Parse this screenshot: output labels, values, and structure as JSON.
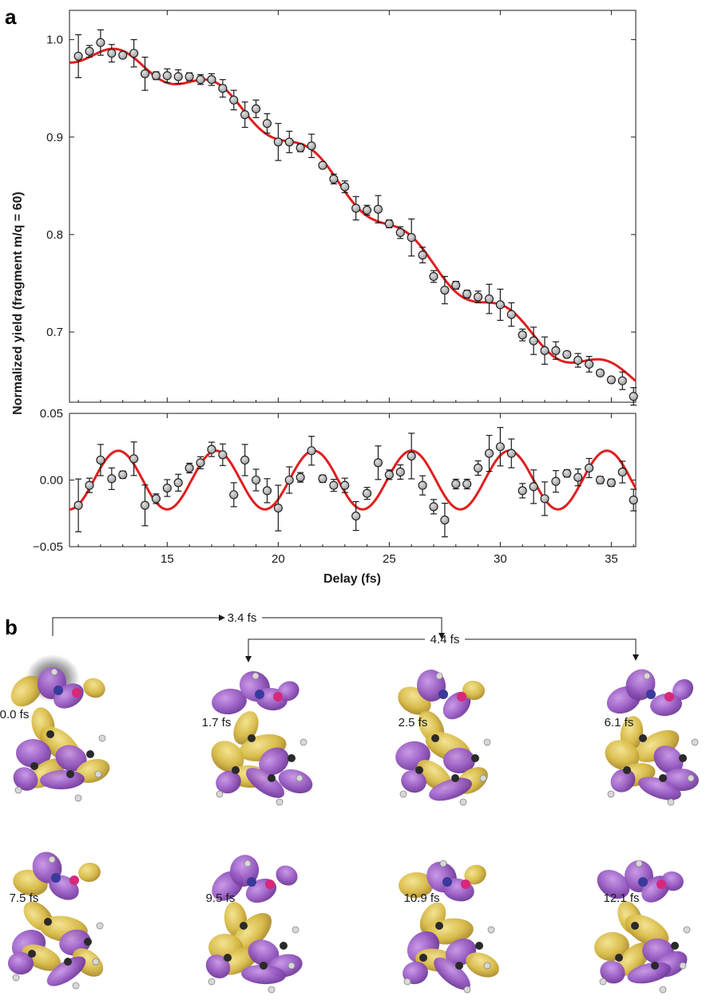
{
  "panel_a_label": "a",
  "panel_b_label": "b",
  "chart_data": [
    {
      "type": "scatter",
      "title": "",
      "xlabel": "Delay (fs)",
      "ylabel": "Normalized yield (fragment m/q = 60)",
      "xlim": [
        10.6,
        36.1
      ],
      "ylim": [
        0.628,
        1.03
      ],
      "xticks": [
        15,
        20,
        25,
        30,
        35
      ],
      "yticks": [
        0.7,
        0.8,
        0.9,
        1.0
      ],
      "ytick_labels": [
        "0.7",
        "0.8",
        "0.9",
        "1.0"
      ],
      "grid": false,
      "series": [
        {
          "kind": "points_with_errorbars",
          "color": "#a8a8a8",
          "x": [
            11.0,
            11.5,
            12.0,
            12.5,
            13.0,
            13.5,
            14.0,
            14.5,
            15.0,
            15.5,
            16.0,
            16.5,
            17.0,
            17.5,
            18.0,
            18.5,
            19.0,
            19.5,
            20.0,
            20.5,
            21.0,
            21.5,
            22.0,
            22.5,
            23.0,
            23.5,
            24.0,
            24.5,
            25.0,
            25.5,
            26.0,
            26.5,
            27.0,
            27.5,
            28.0,
            28.5,
            29.0,
            29.5,
            30.0,
            30.5,
            31.0,
            31.5,
            32.0,
            32.5,
            33.0,
            33.5,
            34.0,
            34.5,
            35.0,
            35.5,
            36.0
          ],
          "y": [
            0.983,
            0.988,
            0.997,
            0.986,
            0.984,
            0.986,
            0.965,
            0.963,
            0.963,
            0.962,
            0.962,
            0.959,
            0.959,
            0.95,
            0.938,
            0.923,
            0.929,
            0.914,
            0.895,
            0.895,
            0.889,
            0.891,
            0.871,
            0.857,
            0.849,
            0.827,
            0.825,
            0.826,
            0.811,
            0.802,
            0.797,
            0.779,
            0.757,
            0.743,
            0.748,
            0.739,
            0.736,
            0.734,
            0.728,
            0.718,
            0.697,
            0.691,
            0.681,
            0.681,
            0.677,
            0.671,
            0.667,
            0.658,
            0.651,
            0.65,
            0.634
          ],
          "yerr": [
            0.022,
            0.006,
            0.013,
            0.009,
            0.003,
            0.014,
            0.017,
            0.004,
            0.007,
            0.007,
            0.004,
            0.005,
            0.006,
            0.009,
            0.01,
            0.013,
            0.009,
            0.01,
            0.019,
            0.011,
            0.004,
            0.012,
            0.003,
            0.005,
            0.006,
            0.012,
            0.005,
            0.014,
            0.004,
            0.006,
            0.019,
            0.008,
            0.006,
            0.014,
            0.004,
            0.004,
            0.006,
            0.015,
            0.016,
            0.012,
            0.006,
            0.014,
            0.014,
            0.009,
            0.003,
            0.007,
            0.008,
            0.003,
            0.003,
            0.009,
            0.009
          ]
        },
        {
          "kind": "fit_curve",
          "color": "#e01e1e",
          "description_free_params": true
        }
      ]
    },
    {
      "type": "scatter",
      "title": "",
      "xlabel": "Delay (fs)",
      "ylabel": "",
      "xlim": [
        10.6,
        36.1
      ],
      "ylim": [
        -0.05,
        0.05
      ],
      "xticks": [
        15,
        20,
        25,
        30,
        35
      ],
      "xtick_labels": [
        "15",
        "20",
        "25",
        "30",
        "35"
      ],
      "yticks": [
        -0.05,
        0.0,
        0.05
      ],
      "ytick_labels": [
        "−0.05",
        "0.00",
        "0.05"
      ],
      "grid": false,
      "series": [
        {
          "kind": "points_with_errorbars",
          "color": "#a8a8a8",
          "x": [
            11.0,
            11.5,
            12.0,
            12.5,
            13.0,
            13.5,
            14.0,
            14.5,
            15.0,
            15.5,
            16.0,
            16.5,
            17.0,
            17.5,
            18.0,
            18.5,
            19.0,
            19.5,
            20.0,
            20.5,
            21.0,
            21.5,
            22.0,
            22.5,
            23.0,
            23.5,
            24.0,
            24.5,
            25.0,
            25.5,
            26.0,
            26.5,
            27.0,
            27.5,
            28.0,
            28.5,
            29.0,
            29.5,
            30.0,
            30.5,
            31.0,
            31.5,
            32.0,
            32.5,
            33.0,
            33.5,
            34.0,
            34.5,
            35.0,
            35.5,
            36.0
          ],
          "y": [
            -0.019,
            -0.004,
            0.015,
            0.001,
            0.004,
            0.016,
            -0.019,
            -0.014,
            -0.006,
            -0.002,
            0.009,
            0.013,
            0.023,
            0.019,
            -0.011,
            0.015,
            0.0,
            -0.008,
            -0.021,
            0.0,
            0.002,
            0.022,
            0.001,
            -0.004,
            -0.004,
            -0.027,
            -0.01,
            0.013,
            0.004,
            0.006,
            0.018,
            -0.004,
            -0.02,
            -0.03,
            -0.003,
            -0.003,
            0.009,
            0.02,
            0.025,
            0.02,
            -0.008,
            -0.005,
            -0.014,
            -0.001,
            0.005,
            0.002,
            0.009,
            0.0,
            -0.002,
            0.006,
            -0.015
          ]
        },
        {
          "kind": "fit_curve",
          "color": "#e01e1e",
          "amplitude": 0.022,
          "period_fs": 4.4,
          "peak_at_fs": 12.8
        }
      ]
    }
  ],
  "intervals": [
    {
      "label": "4.4 fs"
    },
    {
      "label": "3.4 fs"
    }
  ],
  "snapshots": [
    {
      "label": "0.0 fs"
    },
    {
      "label": "1.7 fs"
    },
    {
      "label": "2.5 fs"
    },
    {
      "label": "6.1 fs"
    },
    {
      "label": "7.5 fs"
    },
    {
      "label": "9.5 fs"
    },
    {
      "label": "10.9 fs"
    },
    {
      "label": "12.1 fs"
    }
  ],
  "colors": {
    "fit": "#e01e1e",
    "marker": "#a8a8a8",
    "orbital_yellow": "#d9be4a",
    "orbital_purple": "#9a5cc4"
  }
}
